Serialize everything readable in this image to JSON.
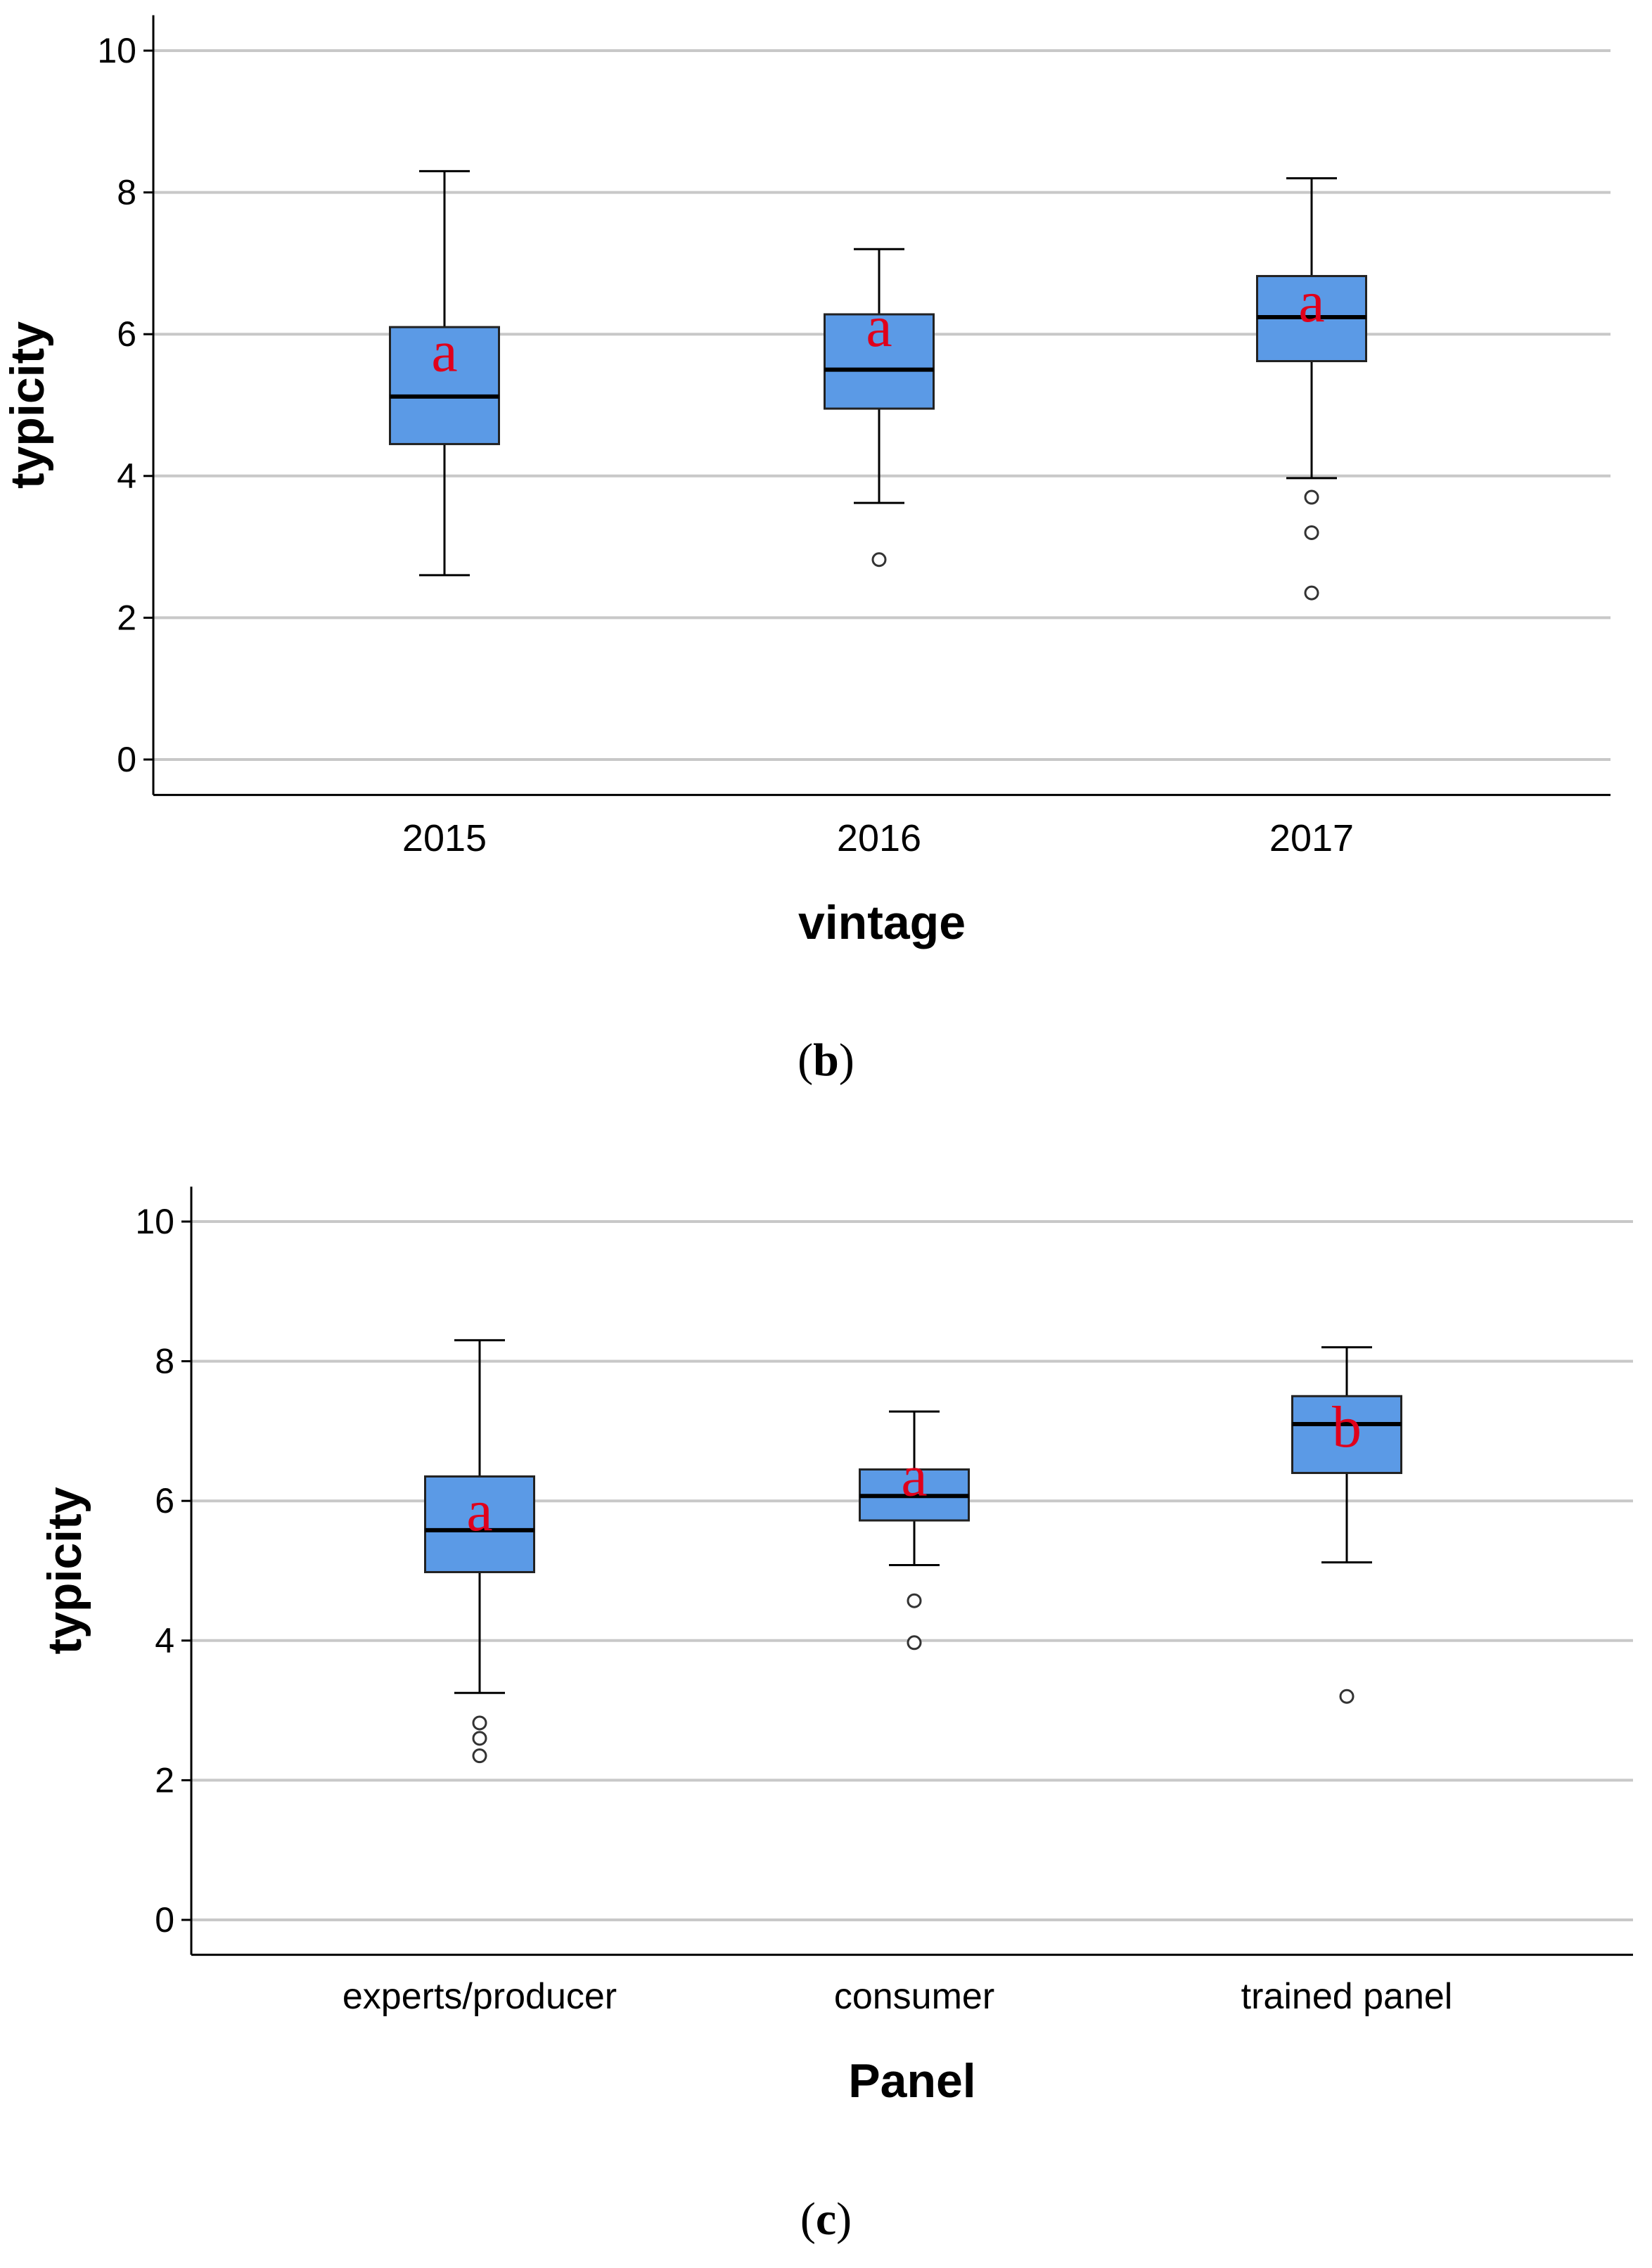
{
  "chart_data": [
    {
      "type": "box",
      "panel_label": "b",
      "xlabel": "vintage",
      "ylabel": "typicity",
      "ylim": [
        -0.5,
        10.5
      ],
      "yticks": [
        0,
        2,
        4,
        6,
        8,
        10
      ],
      "grid": true,
      "box_color": "#5b9ae6",
      "letter_color": "#e0001b",
      "categories": [
        "2015",
        "2016",
        "2017"
      ],
      "boxes": [
        {
          "category": "2015",
          "min": 2.6,
          "q1": 4.45,
          "median": 5.12,
          "q3": 6.1,
          "max": 8.3,
          "outliers": [],
          "letter": "a",
          "letter_y": 5.7
        },
        {
          "category": "2016",
          "min": 3.62,
          "q1": 4.95,
          "median": 5.5,
          "q3": 6.28,
          "max": 7.2,
          "outliers": [
            2.82
          ],
          "letter": "a",
          "letter_y": 6.05
        },
        {
          "category": "2017",
          "min": 3.97,
          "q1": 5.62,
          "median": 6.24,
          "q3": 6.82,
          "max": 8.2,
          "outliers": [
            3.7,
            3.2,
            2.35
          ],
          "letter": "a",
          "letter_y": 6.4
        }
      ]
    },
    {
      "type": "box",
      "panel_label": "c",
      "xlabel": "Panel",
      "ylabel": "typicity",
      "ylim": [
        -0.5,
        10.5
      ],
      "yticks": [
        0,
        2,
        4,
        6,
        8,
        10
      ],
      "grid": true,
      "box_color": "#5b9ae6",
      "letter_color": "#e0001b",
      "categories": [
        "experts/producer",
        "consumer",
        "trained panel"
      ],
      "boxes": [
        {
          "category": "experts/producer",
          "min": 3.25,
          "q1": 4.98,
          "median": 5.58,
          "q3": 6.35,
          "max": 8.3,
          "outliers": [
            2.82,
            2.6,
            2.35
          ],
          "letter": "a",
          "letter_y": 5.8
        },
        {
          "category": "consumer",
          "min": 5.08,
          "q1": 5.72,
          "median": 6.07,
          "q3": 6.45,
          "max": 7.28,
          "outliers": [
            4.57,
            3.97
          ],
          "letter": "a",
          "letter_y": 6.3
        },
        {
          "category": "trained panel",
          "min": 5.12,
          "q1": 6.4,
          "median": 7.1,
          "q3": 7.5,
          "max": 8.2,
          "outliers": [
            3.2
          ],
          "letter": "b",
          "letter_y": 7.0
        }
      ]
    }
  ]
}
